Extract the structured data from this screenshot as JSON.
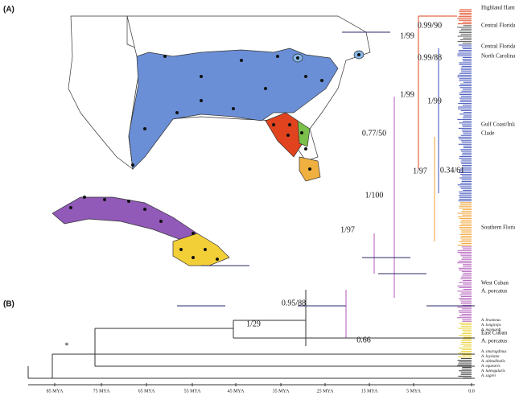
{
  "panels": {
    "a": "(A)",
    "b": "(B)"
  },
  "clades": [
    "Highland Hammocks",
    "Central Florida I",
    "Central Florida II",
    "North Carolina",
    "Gulf Coast/Inland",
    "Clade",
    "Southern Florida",
    "West Cuban",
    "A. porcatus",
    "East Cuban",
    "A. porcatus"
  ],
  "species": [
    "A. brunneus",
    "A. longiceps",
    "A. maynardi",
    "A. smaragdinus",
    "A. loysiana",
    "A. altitudinalis",
    "A. equestris",
    "A. luteogularis",
    "A. sagrei"
  ],
  "supports": [
    "1/99",
    "0.99/90",
    "0.99/88",
    "1/99",
    "1/99",
    "1/97",
    "0.34/61",
    "0.77/50",
    "1/100",
    "1/97",
    "0.95/88",
    "1/29",
    "0.66",
    "*"
  ],
  "axis": [
    "85 MYA",
    "75 MYA",
    "65 MYA",
    "55 MYA",
    "45 MYA",
    "35 MYA",
    "25 MYA",
    "15 MYA",
    "5 MYA",
    "0.0"
  ]
}
